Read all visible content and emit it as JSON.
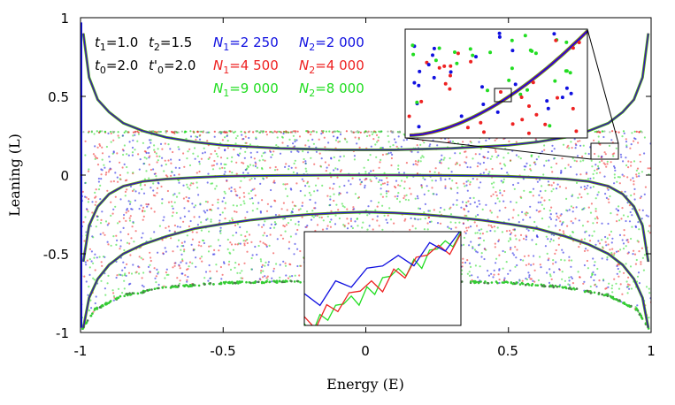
{
  "chart_data": {
    "type": "scatter",
    "xlabel": "Energy (E)",
    "ylabel": "Leaning (L)",
    "xlim": [
      -1,
      1
    ],
    "ylim": [
      -1,
      1
    ],
    "x_ticks": [
      "-1",
      "-0.5",
      "0",
      "0.5",
      "1"
    ],
    "y_ticks": [
      "1",
      "0.5",
      "0",
      "-0.5",
      "-1"
    ],
    "grid": false,
    "params": [
      {
        "symbol": "t",
        "sub": "1",
        "value": "=1.0"
      },
      {
        "symbol": "t",
        "sub": "2",
        "value": "=1.5"
      },
      {
        "symbol": "t",
        "sub": "0",
        "value": "=2.0"
      },
      {
        "symbol": "t'",
        "sub": "0",
        "value": "=2.0"
      }
    ],
    "series": [
      {
        "color": "#1010e0",
        "n1_label": "N",
        "n1_sub": "1",
        "n1_value": "=2 250",
        "n2_label": "N",
        "n2_sub": "2",
        "n2_value": "=2 000"
      },
      {
        "color": "#ee2222",
        "n1_label": "N",
        "n1_sub": "1",
        "n1_value": "=4 500",
        "n2_label": "N",
        "n2_sub": "2",
        "n2_value": "=4 000"
      },
      {
        "color": "#22dd22",
        "n1_label": "N",
        "n1_sub": "1",
        "n1_value": "=9 000",
        "n2_label": "N",
        "n2_sub": "2",
        "n2_value": "=8 000"
      }
    ],
    "curves": [
      {
        "name": "upper",
        "x": [
          -0.99,
          -0.97,
          -0.94,
          -0.9,
          -0.85,
          -0.78,
          -0.7,
          -0.6,
          -0.5,
          -0.4,
          -0.3,
          -0.2,
          -0.1,
          0,
          0.1,
          0.2,
          0.3,
          0.4,
          0.5,
          0.6,
          0.7,
          0.78,
          0.85,
          0.9,
          0.94,
          0.97,
          0.99
        ],
        "y": [
          0.9,
          0.62,
          0.48,
          0.4,
          0.33,
          0.28,
          0.24,
          0.21,
          0.19,
          0.18,
          0.17,
          0.165,
          0.16,
          0.16,
          0.16,
          0.165,
          0.17,
          0.18,
          0.19,
          0.21,
          0.24,
          0.28,
          0.33,
          0.4,
          0.48,
          0.62,
          0.9
        ]
      },
      {
        "name": "middle",
        "x": [
          -0.99,
          -0.97,
          -0.94,
          -0.9,
          -0.85,
          -0.78,
          -0.7,
          -0.6,
          -0.5,
          -0.4,
          -0.3,
          -0.2,
          -0.1,
          0,
          0.1,
          0.2,
          0.3,
          0.4,
          0.5,
          0.6,
          0.7,
          0.78,
          0.85,
          0.9,
          0.94,
          0.97,
          0.99
        ],
        "y": [
          -0.55,
          -0.32,
          -0.2,
          -0.12,
          -0.07,
          -0.04,
          -0.025,
          -0.015,
          -0.008,
          -0.004,
          -0.002,
          -0.001,
          0,
          0,
          0,
          -0.001,
          -0.002,
          -0.004,
          -0.008,
          -0.015,
          -0.025,
          -0.04,
          -0.07,
          -0.12,
          -0.2,
          -0.32,
          -0.55
        ]
      },
      {
        "name": "lower",
        "x": [
          -0.99,
          -0.97,
          -0.94,
          -0.9,
          -0.85,
          -0.78,
          -0.7,
          -0.6,
          -0.5,
          -0.4,
          -0.3,
          -0.2,
          -0.1,
          0,
          0.1,
          0.2,
          0.3,
          0.4,
          0.5,
          0.6,
          0.7,
          0.78,
          0.85,
          0.9,
          0.94,
          0.97,
          0.99
        ],
        "y": [
          -0.97,
          -0.78,
          -0.66,
          -0.57,
          -0.5,
          -0.44,
          -0.39,
          -0.34,
          -0.31,
          -0.285,
          -0.265,
          -0.25,
          -0.24,
          -0.235,
          -0.24,
          -0.25,
          -0.265,
          -0.285,
          -0.31,
          -0.34,
          -0.39,
          -0.44,
          -0.5,
          -0.57,
          -0.66,
          -0.78,
          -0.97
        ]
      }
    ],
    "cloud_bands": {
      "upper_y": 0.28,
      "lower_edge": [
        [
          -1,
          -1
        ],
        [
          -0.95,
          -0.86
        ],
        [
          -0.85,
          -0.77
        ],
        [
          -0.7,
          -0.72
        ],
        [
          -0.5,
          -0.69
        ],
        [
          0,
          -0.675
        ],
        [
          0.5,
          -0.69
        ],
        [
          0.7,
          -0.72
        ],
        [
          0.85,
          -0.77
        ],
        [
          0.95,
          -0.86
        ],
        [
          1,
          -1
        ]
      ]
    },
    "inset_zoom_box": {
      "x": [
        0.8,
        0.9
      ],
      "y": [
        0.15,
        0.23
      ]
    }
  }
}
